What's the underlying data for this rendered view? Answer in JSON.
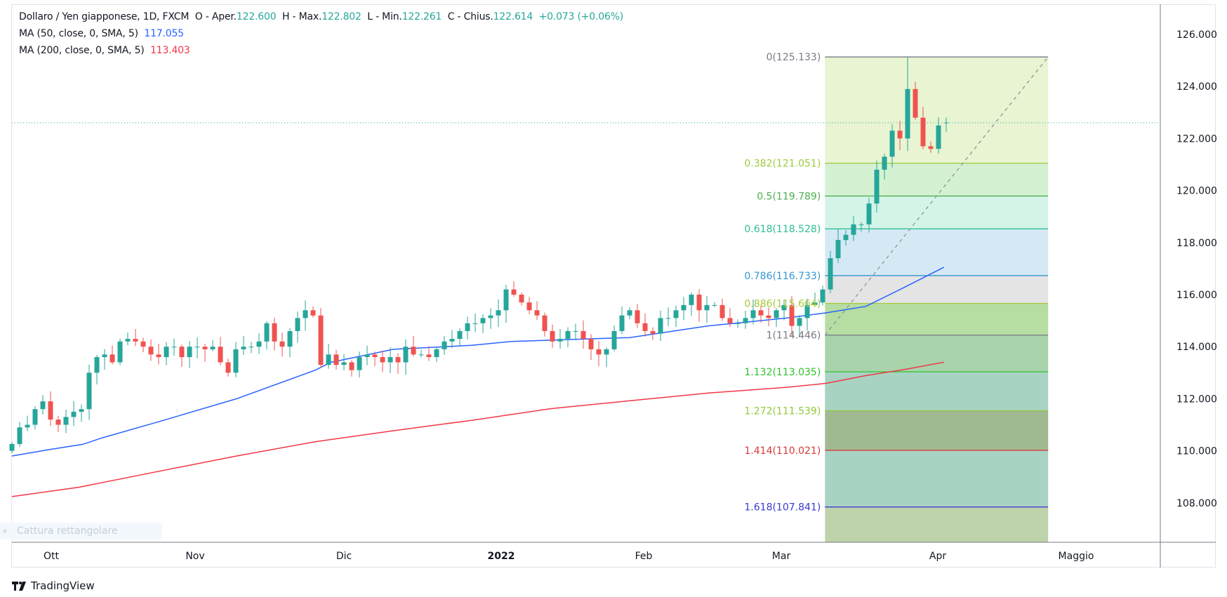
{
  "header": {
    "symbol": "Dollaro / Yen giapponese, 1D, FXCM",
    "open_label": "O - Aper.",
    "open": "122.600",
    "high_label": "H - Max.",
    "high": "122.802",
    "low_label": "L - Min.",
    "low": "122.261",
    "close_label": "C - Chius.",
    "close": "122.614",
    "change": "+0.073 (+0.06%)"
  },
  "indicators": [
    {
      "label": "MA (50, close, 0, SMA, 5)",
      "value": "117.055",
      "color": "#2962ff"
    },
    {
      "label": "MA (200, close, 0, SMA, 5)",
      "value": "113.403",
      "color": "#f23645"
    }
  ],
  "tooltip": "Cattura rettangolare",
  "brand": "TradingView",
  "chart_data": {
    "type": "candlestick",
    "title": "Dollaro / Yen giapponese, 1D, FXCM",
    "x_unit": "trading day index",
    "ylim": [
      106.6,
      127.1
    ],
    "y_ticks": [
      "126.000",
      "124.000",
      "122.000",
      "120.000",
      "118.000",
      "116.000",
      "114.000",
      "112.000",
      "110.000",
      "108.000"
    ],
    "x_ticks": [
      "Ott",
      "Nov",
      "Dic",
      "2022",
      "Feb",
      "Mar",
      "Apr",
      "Maggio"
    ],
    "colors": {
      "up": "#26a69a",
      "down": "#ef5350"
    },
    "first_open": 110.0,
    "closes": [
      110.26,
      110.9,
      111.0,
      111.6,
      111.9,
      111.2,
      111.0,
      111.3,
      111.5,
      111.6,
      113.0,
      113.6,
      113.7,
      113.4,
      114.2,
      114.3,
      114.2,
      114.0,
      113.7,
      113.6,
      114.0,
      114.0,
      113.6,
      114.0,
      114.0,
      113.9,
      114.0,
      113.4,
      113.0,
      113.9,
      114.0,
      114.0,
      114.2,
      114.9,
      114.2,
      114.0,
      114.6,
      115.1,
      115.4,
      115.2,
      113.3,
      113.7,
      113.3,
      113.4,
      113.1,
      113.6,
      113.7,
      113.6,
      113.4,
      113.6,
      113.4,
      114.0,
      113.7,
      113.7,
      113.6,
      113.9,
      114.2,
      114.3,
      114.6,
      114.9,
      114.9,
      115.1,
      115.2,
      115.4,
      116.2,
      116.0,
      115.7,
      115.4,
      115.2,
      114.6,
      114.2,
      114.3,
      114.6,
      114.6,
      114.3,
      113.9,
      113.7,
      113.9,
      114.6,
      115.2,
      115.4,
      114.9,
      114.6,
      114.5,
      115.1,
      115.1,
      115.4,
      115.6,
      116.0,
      115.4,
      115.6,
      115.6,
      115.1,
      114.9,
      114.9,
      115.1,
      115.4,
      115.2,
      115.1,
      115.4,
      115.6,
      114.8,
      115.1,
      115.6,
      115.7,
      116.2,
      117.4,
      118.1,
      118.3,
      118.7,
      118.7,
      119.5,
      120.8,
      121.3,
      122.3,
      122.0,
      123.9,
      122.8,
      121.7,
      121.6,
      122.5,
      122.614
    ],
    "peak": {
      "bar": 116,
      "high": 125.133
    },
    "last_candle": {
      "open": 122.6,
      "high": 122.802,
      "low": 122.261,
      "close": 122.614
    },
    "current_price": 122.614,
    "series": [
      {
        "name": "MA 50",
        "color": "#2962ff",
        "points": [
          [
            0,
            109.8
          ],
          [
            4.9,
            110.05
          ],
          [
            9.2,
            110.25
          ],
          [
            11.7,
            110.5
          ],
          [
            18.8,
            111.1
          ],
          [
            29.1,
            112.0
          ],
          [
            39.3,
            113.1
          ],
          [
            41.3,
            113.4
          ],
          [
            49.4,
            113.9
          ],
          [
            59.5,
            114.05
          ],
          [
            64.7,
            114.2
          ],
          [
            69.8,
            114.25
          ],
          [
            80,
            114.35
          ],
          [
            90.2,
            114.8
          ],
          [
            100.3,
            115.1
          ],
          [
            105.4,
            115.3
          ],
          [
            110.6,
            115.55
          ],
          [
            115.7,
            116.3
          ],
          [
            120.7,
            117.055
          ]
        ]
      },
      {
        "name": "MA 200",
        "color": "#f23645",
        "points": [
          [
            0,
            108.24
          ],
          [
            8.7,
            108.6
          ],
          [
            18.8,
            109.2
          ],
          [
            29.1,
            109.8
          ],
          [
            39.3,
            110.35
          ],
          [
            49.4,
            110.77
          ],
          [
            59.5,
            111.17
          ],
          [
            69.8,
            111.62
          ],
          [
            79.9,
            111.92
          ],
          [
            90.2,
            112.22
          ],
          [
            100.3,
            112.44
          ],
          [
            105.4,
            112.59
          ],
          [
            110.6,
            112.89
          ],
          [
            115.7,
            113.13
          ],
          [
            120.7,
            113.403
          ]
        ]
      }
    ],
    "fibonacci": {
      "start_bar": 105.3,
      "end_bar": 134.2,
      "levels": [
        {
          "label": "0(125.133)",
          "price": 125.133,
          "color": "#787b86",
          "fill": "#e8f4d2"
        },
        {
          "label": "0.382(121.051)",
          "price": 121.051,
          "color": "#9ccc3c",
          "fill": "#d4f2d2"
        },
        {
          "label": "0.5(119.789)",
          "price": 119.789,
          "color": "#4caf50",
          "fill": "#d4f4e8"
        },
        {
          "label": "0.618(118.528)",
          "price": 118.528,
          "color": "#2fbf95",
          "fill": "#d5e9f4"
        },
        {
          "label": "0.786(116.733)",
          "price": 116.733,
          "color": "#3596d1",
          "fill": "#e4e4e4"
        },
        {
          "label": "0.886(115.664)",
          "price": 115.664,
          "color": "#a5c93a",
          "fill": "#b6dda2"
        },
        {
          "label": "1(114.446)",
          "price": 114.446,
          "color": "#787b86",
          "fill": "#a8d3ab"
        },
        {
          "label": "1.132(113.035)",
          "price": 113.035,
          "color": "#2ec32e",
          "fill": "#a8d3c2"
        },
        {
          "label": "1.272(111.539)",
          "price": 111.539,
          "color": "#95c83a",
          "fill": "#a0b990"
        },
        {
          "label": "1.414(110.021)",
          "price": 110.021,
          "color": "#d63a3a",
          "fill": "#a8d3c2"
        },
        {
          "label": "1.618(107.841)",
          "price": 107.841,
          "color": "#3a3ad0",
          "fill": "#bfd3ab"
        }
      ]
    }
  }
}
